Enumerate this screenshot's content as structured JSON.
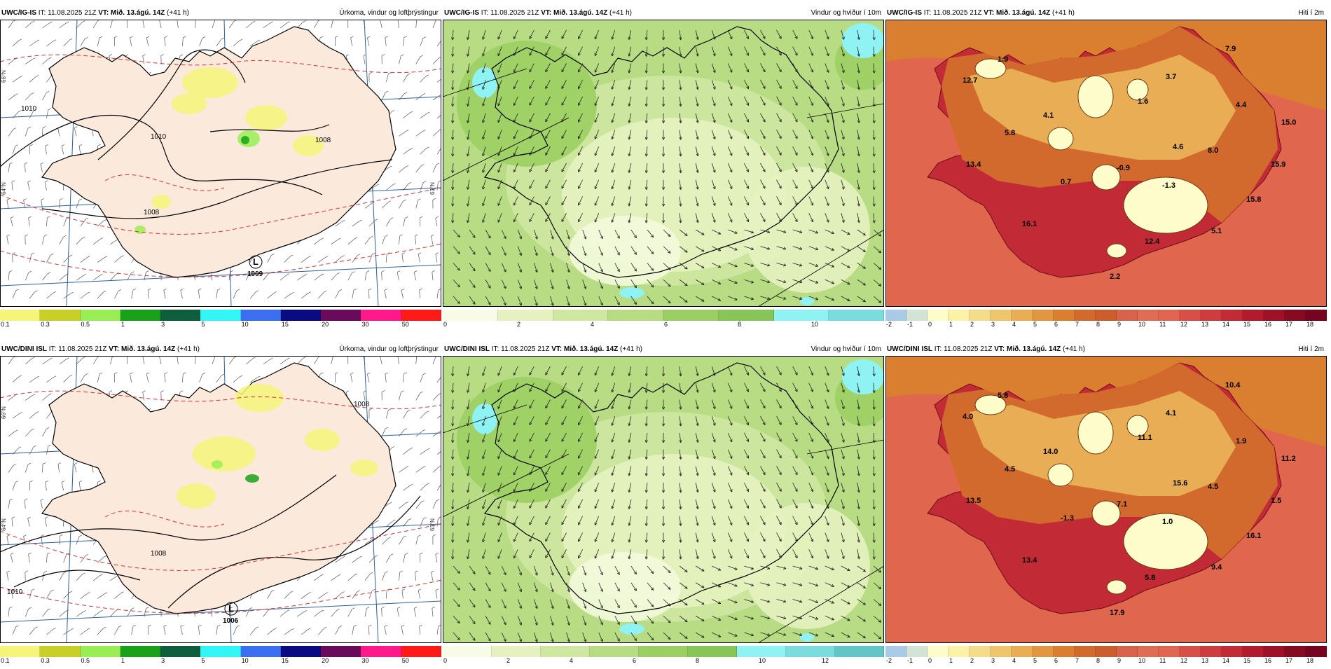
{
  "rows": [
    {
      "model": "UWC/IG-IS",
      "it_label": "IT:",
      "it_value": "11.08.2025 21Z",
      "vt_label": "VT:",
      "vt_value": "Mið. 13.ágú. 14Z",
      "lead": "(+41 h)",
      "panels": [
        {
          "title": "Úrkoma, vindur og loftþrýstingur",
          "colorbar_ticks": [
            "0.1",
            "0.3",
            "0.5",
            "1",
            "3",
            "5",
            "10",
            "15",
            "20",
            "30",
            "50"
          ],
          "colorbar_colors": [
            "#f5f57a",
            "#c8cf27",
            "#99ee55",
            "#19a219",
            "#0f5f3f",
            "#33f5f5",
            "#3b6ff0",
            "#0a0a82",
            "#6a0a5a",
            "#ff1a8c",
            "#ff1a1a"
          ],
          "isobars": [
            "1010",
            "1010",
            "1008",
            "1008"
          ],
          "side_labels": [
            "66°N",
            "64°N",
            "63°N"
          ],
          "low_label": "L",
          "low_value": "1009"
        },
        {
          "title": "Vindur og hviður í 10m",
          "colorbar_ticks": [
            "0",
            "2",
            "4",
            "6",
            "8",
            "10"
          ],
          "colorbar_colors": [
            "#f8fbe6",
            "#e5f2c0",
            "#cfe7a0",
            "#b8dc84",
            "#9ccf63",
            "#88c558",
            "#8ff3f3",
            "#7adcdc"
          ]
        },
        {
          "title": "Hiti í 2m",
          "colorbar_ticks": [
            "-2",
            "-1",
            "0",
            "1",
            "2",
            "3",
            "4",
            "5",
            "6",
            "7",
            "8",
            "9",
            "10",
            "11",
            "12",
            "13",
            "14",
            "15",
            "16",
            "17",
            "18"
          ],
          "colorbar_colors": [
            "#a9cbe8",
            "#d4e4d4",
            "#fdfccb",
            "#fbf2a8",
            "#f5dc8a",
            "#efc56d",
            "#e9ae55",
            "#e29641",
            "#da7e30",
            "#d36a2d",
            "#cc5e2e",
            "#d8634a",
            "#df6d54",
            "#e06552",
            "#d65049",
            "#cd3c3e",
            "#c22b35",
            "#b21b2e",
            "#9d1227",
            "#870a23",
            "#74041f"
          ],
          "values": [
            "1.9",
            "7.9",
            "12.7",
            "3.7",
            "1.6",
            "4.4",
            "4.1",
            "15.0",
            "5.8",
            "4.6",
            "8.0",
            "13.4",
            "-0.9",
            "15.9",
            "0.7",
            "-1.3",
            "15.8",
            "16.1",
            "5.1",
            "12.4",
            "2.2"
          ]
        }
      ]
    },
    {
      "model": "UWC/DINI ISL",
      "it_label": "IT:",
      "it_value": "11.08.2025 21Z",
      "vt_label": "VT:",
      "vt_value": "Mið. 13.ágú. 14Z",
      "lead": "(+41 h)",
      "panels": [
        {
          "title": "Úrkoma, vindur og loftþrýstingur",
          "colorbar_ticks": [
            "0.1",
            "0.3",
            "0.5",
            "1",
            "3",
            "5",
            "10",
            "15",
            "20",
            "30",
            "50"
          ],
          "colorbar_colors": [
            "#f5f57a",
            "#c8cf27",
            "#99ee55",
            "#19a219",
            "#0f5f3f",
            "#33f5f5",
            "#3b6ff0",
            "#0a0a82",
            "#6a0a5a",
            "#ff1a8c",
            "#ff1a1a"
          ],
          "isobars": [
            "1008",
            "1008",
            "1010"
          ],
          "side_labels": [
            "66°N",
            "64°N",
            "63°N"
          ],
          "low_label": "L",
          "low_value": "1006"
        },
        {
          "title": "Vindur og hviður í 10m",
          "colorbar_ticks": [
            "0",
            "2",
            "4",
            "6",
            "8",
            "10",
            "12"
          ],
          "colorbar_colors": [
            "#f8fbe6",
            "#e5f2c0",
            "#cfe7a0",
            "#b8dc84",
            "#9ccf63",
            "#88c558",
            "#8ff3f3",
            "#7adcdc",
            "#63c6c6"
          ]
        },
        {
          "title": "Hiti í 2m",
          "colorbar_ticks": [
            "-2",
            "-1",
            "0",
            "1",
            "2",
            "3",
            "4",
            "5",
            "6",
            "7",
            "8",
            "9",
            "10",
            "11",
            "12",
            "13",
            "14",
            "15",
            "16",
            "17",
            "18"
          ],
          "colorbar_colors": [
            "#a9cbe8",
            "#d4e4d4",
            "#fdfccb",
            "#fbf2a8",
            "#f5dc8a",
            "#efc56d",
            "#e9ae55",
            "#e29641",
            "#da7e30",
            "#d36a2d",
            "#cc5e2e",
            "#d8634a",
            "#df6d54",
            "#e06552",
            "#d65049",
            "#cd3c3e",
            "#c22b35",
            "#b21b2e",
            "#9d1227",
            "#870a23",
            "#74041f"
          ],
          "values": [
            "5.8",
            "10.4",
            "4.0",
            "4.1",
            "11.1",
            "1.9",
            "14.0",
            "11.2",
            "4.5",
            "15.6",
            "4.5",
            "13.5",
            "7.1",
            "1.5",
            "-1.3",
            "1.0",
            "16.1",
            "13.4",
            "9.4",
            "5.8",
            "17.9"
          ]
        }
      ]
    }
  ]
}
